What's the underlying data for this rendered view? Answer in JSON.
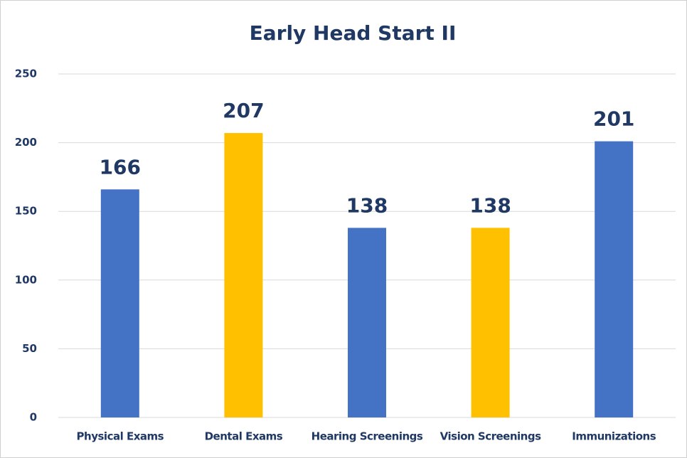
{
  "chart_data": {
    "type": "bar",
    "title": "Early Head Start II",
    "categories": [
      "Physical Exams",
      "Dental Exams",
      "Hearing Screenings",
      "Vision Screenings",
      "Immunizations"
    ],
    "values": [
      166,
      207,
      138,
      138,
      201
    ],
    "colors": [
      "#4472c4",
      "#ffc000",
      "#4472c4",
      "#ffc000",
      "#4472c4"
    ],
    "ylim": [
      0,
      250
    ],
    "yticks": [
      0,
      50,
      100,
      150,
      200,
      250
    ],
    "grid": true
  }
}
